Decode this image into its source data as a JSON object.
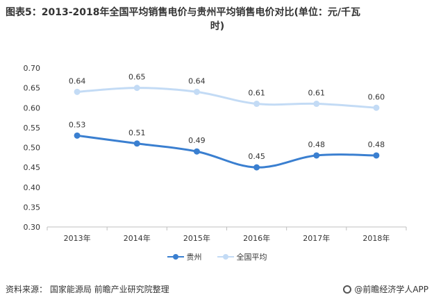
{
  "title": {
    "line1": "图表5：2013-2018年全国平均销售电价与贵州平均销售电价对比(单位：元/千瓦",
    "line2": "时)"
  },
  "footer": {
    "source": "资料来源：  国家能源局 前瞻产业研究院整理",
    "brand": "@前瞻经济学人APP",
    "brand_icon": "qianzhan-logo-icon"
  },
  "chart_data": {
    "type": "line",
    "title": "图表5：2013-2018年全国平均销售电价与贵州平均销售电价对比(单位：元/千瓦时)",
    "xlabel": "",
    "ylabel": "",
    "categories": [
      "2013年",
      "2014年",
      "2015年",
      "2016年",
      "2017年",
      "2018年"
    ],
    "ylim": [
      0.3,
      0.7
    ],
    "yticks": [
      "0.30",
      "0.35",
      "0.40",
      "0.45",
      "0.50",
      "0.55",
      "0.60",
      "0.65",
      "0.70"
    ],
    "grid": false,
    "legend": "bottom",
    "series": [
      {
        "name": "贵州",
        "color": "#3a7fd0",
        "values": [
          0.53,
          0.51,
          0.49,
          0.45,
          0.48,
          0.48
        ],
        "labels": [
          "0.53",
          "0.51",
          "0.49",
          "0.45",
          "0.48",
          "0.48"
        ]
      },
      {
        "name": "全国平均",
        "color": "#c3dbf5",
        "values": [
          0.64,
          0.65,
          0.64,
          0.61,
          0.61,
          0.6
        ],
        "labels": [
          "0.64",
          "0.65",
          "0.64",
          "0.61",
          "0.61",
          "0.60"
        ]
      }
    ]
  }
}
